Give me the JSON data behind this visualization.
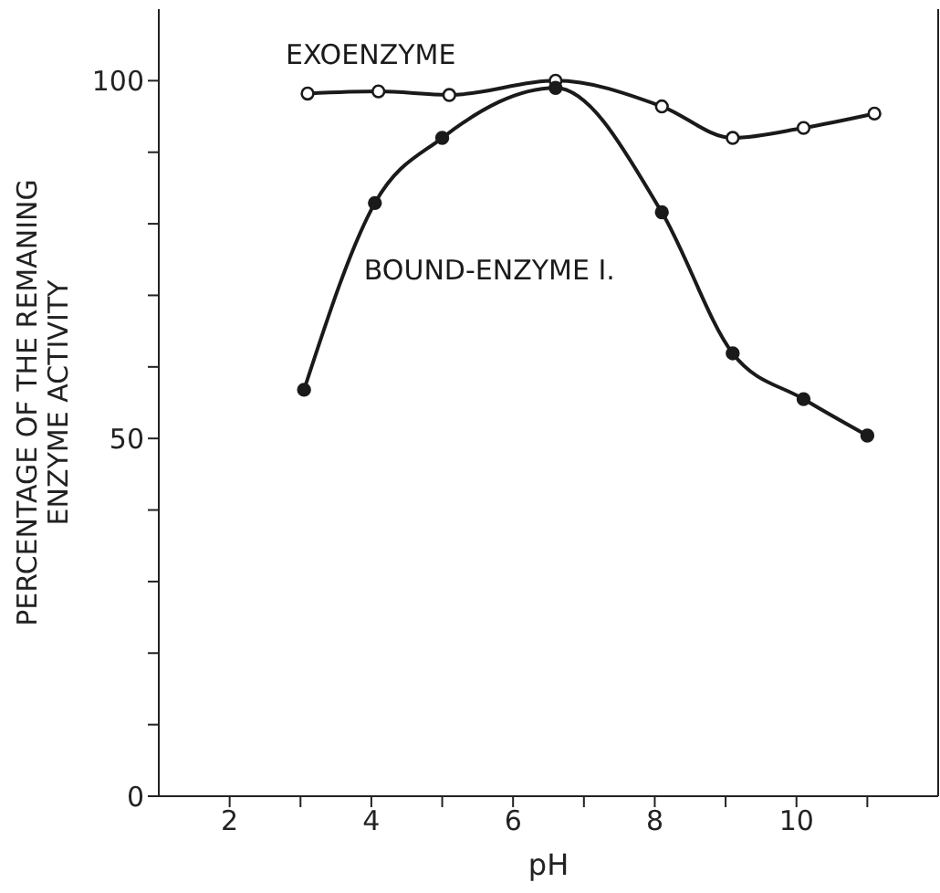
{
  "chart_data": {
    "type": "line",
    "xlabel": "pH",
    "ylabel": "PERCENTAGE OF THE REMANING\nENZYME ACTIVITY",
    "xlim": [
      1,
      12
    ],
    "xticks": [
      2,
      {
        "value": 3,
        "label": null
      },
      4,
      {
        "value": 5,
        "label": null
      },
      6,
      {
        "value": 7,
        "label": null
      },
      8,
      {
        "value": 9,
        "label": null
      },
      10,
      {
        "value": 11,
        "label": null
      }
    ],
    "ylim": [
      0,
      110
    ],
    "yticks": [
      0,
      {
        "value": 10,
        "label": null
      },
      {
        "value": 20,
        "label": null
      },
      {
        "value": 30,
        "label": null
      },
      {
        "value": 40,
        "label": null
      },
      50,
      {
        "value": 60,
        "label": null
      },
      {
        "value": 70,
        "label": null
      },
      {
        "value": 80,
        "label": null
      },
      {
        "value": 90,
        "label": null
      },
      100
    ],
    "grid": false,
    "legend": false,
    "marker": "circle",
    "series": [
      {
        "name": "EXOENZYME",
        "color": "#1a1a1a",
        "x": [
          3.1,
          4.1,
          5.1,
          6.6,
          8.1,
          9.1,
          10.1,
          11.1
        ],
        "values": [
          98.2,
          98.5,
          98,
          100,
          96.4,
          92,
          93.4,
          95.4
        ]
      },
      {
        "name": "BOUND-ENZYME I.",
        "color": "#1a1a1a",
        "x": [
          3.05,
          4.05,
          5.0,
          6.6,
          8.1,
          9.1,
          10.1,
          11.0
        ],
        "values": [
          56.8,
          82.9,
          92,
          99,
          81.6,
          61.9,
          55.5,
          50.4
        ]
      }
    ]
  }
}
